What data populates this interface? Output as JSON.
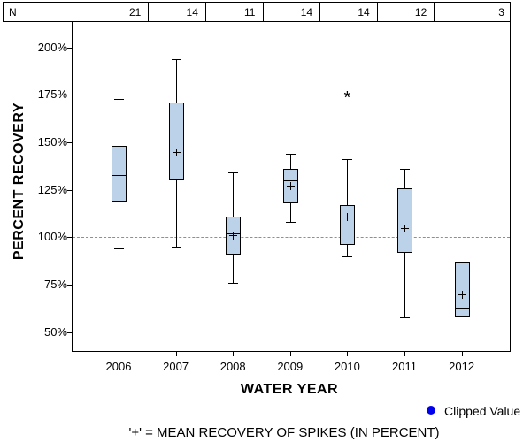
{
  "chart_data": {
    "type": "boxplot",
    "title": "",
    "xlabel": "WATER YEAR",
    "ylabel": "PERCENT RECOVERY",
    "caption": "'+' = MEAN RECOVERY OF SPIKES (IN PERCENT)",
    "n_header_label": "N",
    "categories": [
      "2006",
      "2007",
      "2008",
      "2009",
      "2010",
      "2011",
      "2012"
    ],
    "n_values": [
      21,
      14,
      11,
      14,
      14,
      12,
      3
    ],
    "y_ticks": [
      200,
      175,
      150,
      125,
      100,
      75,
      50
    ],
    "y_tick_suffix": "%",
    "ylim": [
      40,
      214
    ],
    "reference_line": 100,
    "grid": "none",
    "box_fill_color": "#BCD2E8",
    "legend": {
      "position": "bottom-right",
      "marker": "circle",
      "color": "#0000EE",
      "label": "Clipped Value"
    },
    "boxes": [
      {
        "category": "2006",
        "n": 21,
        "whisker_low": 94,
        "q1": 119,
        "median": 133,
        "mean": 133,
        "q3": 148,
        "whisker_high": 173,
        "outliers": []
      },
      {
        "category": "2007",
        "n": 14,
        "whisker_low": 95,
        "q1": 130,
        "median": 139,
        "mean": 145,
        "q3": 171,
        "whisker_high": 194,
        "outliers": []
      },
      {
        "category": "2008",
        "n": 11,
        "whisker_low": 76,
        "q1": 91,
        "median": 102,
        "mean": 101,
        "q3": 111,
        "whisker_high": 134,
        "outliers": []
      },
      {
        "category": "2009",
        "n": 14,
        "whisker_low": 108,
        "q1": 118,
        "median": 130,
        "mean": 127,
        "q3": 136,
        "whisker_high": 144,
        "outliers": []
      },
      {
        "category": "2010",
        "n": 14,
        "whisker_low": 90,
        "q1": 96,
        "median": 103,
        "mean": 111,
        "q3": 117,
        "whisker_high": 141,
        "outliers": [
          175
        ]
      },
      {
        "category": "2011",
        "n": 12,
        "whisker_low": 58,
        "q1": 92,
        "median": 111,
        "mean": 105,
        "q3": 126,
        "whisker_high": 136,
        "outliers": []
      },
      {
        "category": "2012",
        "n": 3,
        "whisker_low": null,
        "q1": 58,
        "median": 63,
        "mean": 70,
        "q3": 87,
        "whisker_high": null,
        "outliers": []
      }
    ]
  }
}
